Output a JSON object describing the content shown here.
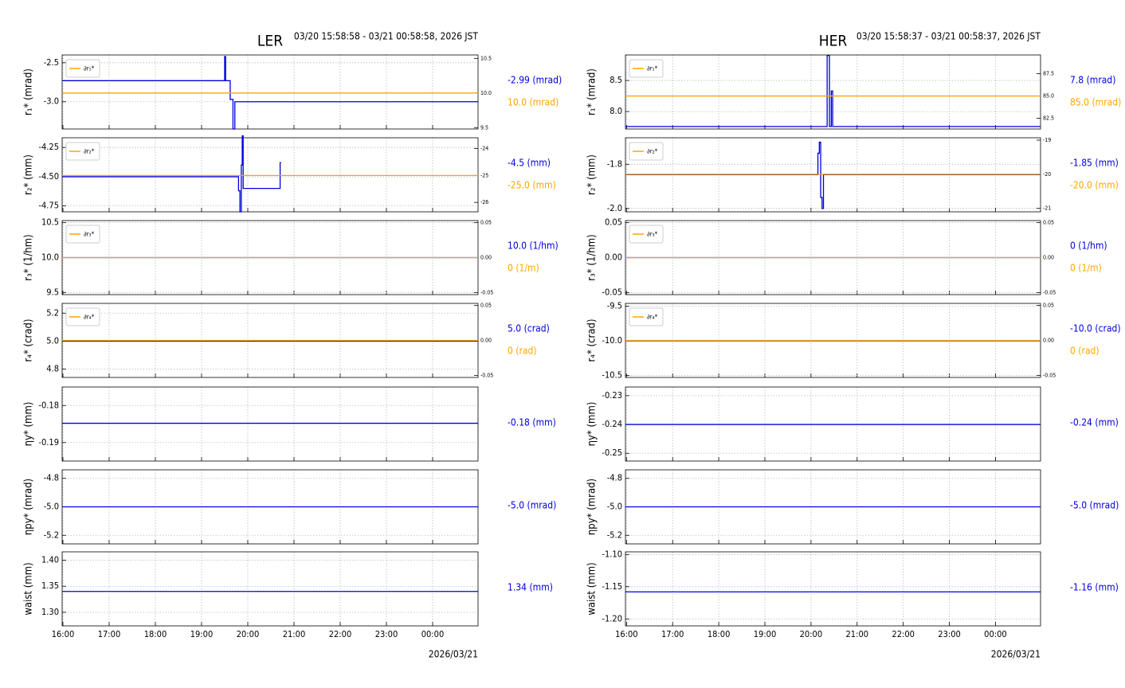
{
  "chart_data": [
    {
      "type": "line",
      "title": "LER",
      "subtitle": "03/20 15:58:58 - 03/21 00:58:58, 2026 JST",
      "xlabel": "2026/03/21",
      "xlim": [
        15.983,
        24.983
      ],
      "xticks": [
        {
          "value": 16,
          "label": "16:00"
        },
        {
          "value": 17,
          "label": "17:00"
        },
        {
          "value": 18,
          "label": "18:00"
        },
        {
          "value": 19,
          "label": "19:00"
        },
        {
          "value": 20,
          "label": "20:00"
        },
        {
          "value": 21,
          "label": "21:00"
        },
        {
          "value": 22,
          "label": "22:00"
        },
        {
          "value": 23,
          "label": "23:00"
        },
        {
          "value": 24,
          "label": "00:00"
        }
      ],
      "panels": [
        {
          "ylabel": "r₁* (mrad)",
          "ylim": [
            -3.35,
            -2.4
          ],
          "yticks": [
            -2.5,
            {
              "value": -3,
              "label": "-3.0"
            }
          ],
          "y2lim": [
            9.48,
            10.55
          ],
          "y2ticks": [
            10.5,
            {
              "value": 10,
              "label": "10.0"
            },
            9.5
          ],
          "series": [
            {
              "color": "#0000dd",
              "x": [
                15.983,
                19.5,
                19.5,
                19.52,
                19.52,
                19.62,
                19.62,
                19.68,
                19.68,
                19.72,
                19.72,
                24.983
              ],
              "values": [
                -2.73,
                -2.73,
                -2.42,
                -2.42,
                -2.73,
                -2.73,
                -2.97,
                -2.97,
                -3.35,
                -3.35,
                -3.0,
                -3.0
              ]
            },
            {
              "name": "∂r₁*",
              "color": "#ffa500",
              "axis": "y2",
              "x": [
                15.983,
                24.983
              ],
              "values": [
                10.0,
                10.0
              ]
            }
          ],
          "readouts": [
            {
              "text": "-2.99 (mrad)",
              "color": "#0000dd"
            },
            {
              "text": "10.0 (mrad)",
              "color": "#ffa500"
            }
          ]
        },
        {
          "ylabel": "r₂* (mm)",
          "ylim": [
            -4.8,
            -4.167
          ],
          "yticks": [
            -4.25,
            {
              "value": -4.5,
              "label": "-4.50"
            },
            -4.75
          ],
          "y2lim": [
            -26.35,
            -23.6
          ],
          "y2ticks": [
            -24,
            -25,
            -26
          ],
          "series": [
            {
              "color": "#0000dd",
              "x": [
                15.983,
                19.8,
                19.8,
                19.83,
                19.83,
                19.86,
                19.86,
                19.88,
                19.88,
                19.9,
                19.9,
                19.93,
                19.93,
                20.7,
                20.7,
                20.72
              ],
              "values": [
                -4.5,
                -4.5,
                -4.62,
                -4.62,
                -4.8,
                -4.8,
                -4.4,
                -4.4,
                -4.15,
                -4.15,
                -4.6,
                -4.6,
                -4.6,
                -4.6,
                -4.38,
                -4.38
              ]
            },
            {
              "name": "∂r₂*",
              "color": "#ffa500",
              "axis": "y2",
              "x": [
                15.983,
                24.983
              ],
              "values": [
                -25,
                -25
              ]
            }
          ],
          "readouts": [
            {
              "text": "-4.5 (mm)",
              "color": "#0000dd"
            },
            {
              "text": "-25.0 (mm)",
              "color": "#ffa500"
            }
          ]
        },
        {
          "ylabel": "r₃* (1/hm)",
          "ylim": [
            9.47,
            10.53
          ],
          "yticks": [
            10.5,
            {
              "value": 10,
              "label": "10.0"
            },
            9.5
          ],
          "y2lim": [
            -0.053,
            0.053
          ],
          "y2ticks": [
            0.05,
            {
              "value": 0,
              "label": "0.00"
            },
            -0.05
          ],
          "series": [
            {
              "color": "#0000dd",
              "x": [
                15.983,
                24.983
              ],
              "values": [
                10,
                10
              ]
            },
            {
              "name": "∂r₃*",
              "color": "#ffa500",
              "axis": "y2",
              "x": [
                15.983,
                24.983
              ],
              "values": [
                0,
                0
              ]
            }
          ],
          "readouts": [
            {
              "text": "10.0 (1/hm)",
              "color": "#0000dd"
            },
            {
              "text": "0 (1/m)",
              "color": "#ffa500"
            }
          ]
        },
        {
          "ylabel": "r₄* (crad)",
          "ylim": [
            4.74,
            5.27
          ],
          "yticks": [
            5.2,
            {
              "value": 5,
              "label": "5.0"
            },
            4.8
          ],
          "y2lim": [
            -0.053,
            0.053
          ],
          "y2ticks": [
            0.05,
            {
              "value": 0,
              "label": "0.00"
            },
            -0.05
          ],
          "series": [
            {
              "color": "#0000dd",
              "x": [
                15.983,
                24.983
              ],
              "values": [
                5,
                5
              ]
            },
            {
              "name": "∂r₄*",
              "color": "#ffa500",
              "axis": "y2",
              "x": [
                15.983,
                24.983
              ],
              "values": [
                0,
                0
              ]
            }
          ],
          "readouts": [
            {
              "text": "5.0 (crad)",
              "color": "#0000dd"
            },
            {
              "text": "0 (rad)",
              "color": "#ffa500"
            }
          ]
        },
        {
          "ylabel": "ηy* (mm)",
          "ylim": [
            -0.195,
            -0.175
          ],
          "yticks": [
            -0.18,
            -0.19
          ],
          "series": [
            {
              "color": "#0000dd",
              "x": [
                15.983,
                24.983
              ],
              "values": [
                -0.1848,
                -0.1848
              ]
            }
          ],
          "readouts": [
            {
              "text": "-0.18 (mm)",
              "color": "#0000dd"
            }
          ]
        },
        {
          "ylabel": "ηpy* (mrad)",
          "ylim": [
            -5.26,
            -4.74
          ],
          "yticks": [
            -4.8,
            {
              "value": -5,
              "label": "-5.0"
            },
            -5.2
          ],
          "series": [
            {
              "color": "#0000dd",
              "x": [
                15.983,
                24.983
              ],
              "values": [
                -5,
                -5
              ]
            }
          ],
          "readouts": [
            {
              "text": "-5.0 (mrad)",
              "color": "#0000dd"
            }
          ]
        },
        {
          "ylabel": "waist (mm)",
          "ylim": [
            1.274,
            1.416
          ],
          "yticks": [
            {
              "value": 1.4,
              "label": "1.40"
            },
            1.35,
            {
              "value": 1.3,
              "label": "1.30"
            }
          ],
          "series": [
            {
              "color": "#0000dd",
              "x": [
                15.983,
                24.983
              ],
              "values": [
                1.34,
                1.34
              ]
            }
          ],
          "readouts": [
            {
              "text": "1.34 (mm)",
              "color": "#0000dd"
            }
          ]
        }
      ]
    },
    {
      "type": "line",
      "title": "HER",
      "subtitle": "03/20 15:58:37 - 03/21 00:58:37, 2026 JST",
      "xlabel": "2026/03/21",
      "xlim": [
        15.977,
        24.977
      ],
      "xticks": [
        {
          "value": 16,
          "label": "16:00"
        },
        {
          "value": 17,
          "label": "17:00"
        },
        {
          "value": 18,
          "label": "18:00"
        },
        {
          "value": 19,
          "label": "19:00"
        },
        {
          "value": 20,
          "label": "20:00"
        },
        {
          "value": 21,
          "label": "21:00"
        },
        {
          "value": 22,
          "label": "22:00"
        },
        {
          "value": 23,
          "label": "23:00"
        },
        {
          "value": 24,
          "label": "00:00"
        }
      ],
      "panels": [
        {
          "ylabel": "r₁* (mrad)",
          "ylim": [
            7.72,
            8.91
          ],
          "yticks": [
            8.5,
            {
              "value": 8,
              "label": "8.0"
            }
          ],
          "y2lim": [
            81.3,
            89.6
          ],
          "y2ticks": [
            87.5,
            {
              "value": 85,
              "label": "85.0"
            },
            82.5
          ],
          "series": [
            {
              "color": "#0000dd",
              "x": [
                15.977,
                20.35,
                20.35,
                20.4,
                20.4,
                20.44,
                20.44,
                20.47,
                20.47,
                24.977
              ],
              "values": [
                7.76,
                7.76,
                8.9,
                8.9,
                7.76,
                7.76,
                8.33,
                8.33,
                7.76,
                7.76
              ]
            },
            {
              "name": "∂r₁*",
              "color": "#ffa500",
              "axis": "y2",
              "x": [
                15.977,
                24.977
              ],
              "values": [
                85,
                85
              ]
            }
          ],
          "readouts": [
            {
              "text": "7.8 (mrad)",
              "color": "#0000dd"
            },
            {
              "text": "85.0 (mrad)",
              "color": "#ffa500"
            }
          ]
        },
        {
          "ylabel": "r₂* (mm)",
          "ylim": [
            -2.015,
            -1.68
          ],
          "yticks": [
            -1.8,
            {
              "value": -2,
              "label": "-2.0"
            }
          ],
          "y2lim": [
            -21.1,
            -18.93
          ],
          "y2ticks": [
            -19,
            -20,
            -21
          ],
          "series": [
            {
              "color": "#0000dd",
              "x": [
                15.977,
                20.15,
                20.15,
                20.18,
                20.18,
                20.21,
                20.21,
                20.24,
                20.24,
                20.27,
                20.27,
                24.977
              ],
              "values": [
                -1.847,
                -1.847,
                -1.75,
                -1.75,
                -1.7,
                -1.7,
                -1.95,
                -1.95,
                -2.0,
                -2.0,
                -1.847,
                -1.847
              ]
            },
            {
              "name": "∂r₂*",
              "color": "#ffa500",
              "axis": "y2",
              "x": [
                15.977,
                24.977
              ],
              "values": [
                -20,
                -20
              ]
            }
          ],
          "readouts": [
            {
              "text": "-1.85 (mm)",
              "color": "#0000dd"
            },
            {
              "text": "-20.0 (mm)",
              "color": "#ffa500"
            }
          ]
        },
        {
          "ylabel": "r₃* (1/hm)",
          "ylim": [
            -0.053,
            0.053
          ],
          "yticks": [
            {
              "value": 0.05,
              "label": "0.05"
            },
            {
              "value": 0,
              "label": "0.00"
            },
            -0.05
          ],
          "y2lim": [
            -0.053,
            0.053
          ],
          "y2ticks": [
            0.05,
            {
              "value": 0,
              "label": "0.00"
            },
            -0.05
          ],
          "series": [
            {
              "color": "#0000dd",
              "x": [
                15.977,
                24.977
              ],
              "values": [
                0,
                0
              ]
            },
            {
              "name": "∂r₃*",
              "color": "#ffa500",
              "axis": "y2",
              "x": [
                15.977,
                24.977
              ],
              "values": [
                0,
                0
              ]
            }
          ],
          "readouts": [
            {
              "text": "0 (1/hm)",
              "color": "#0000dd"
            },
            {
              "text": "0 (1/m)",
              "color": "#ffa500"
            }
          ]
        },
        {
          "ylabel": "r₄* (crad)",
          "ylim": [
            -10.53,
            -9.46
          ],
          "yticks": [
            -9.5,
            {
              "value": -10,
              "label": "-10.0"
            },
            -10.5
          ],
          "y2lim": [
            -0.053,
            0.053
          ],
          "y2ticks": [
            0.05,
            {
              "value": 0,
              "label": "0.00"
            },
            -0.05
          ],
          "series": [
            {
              "color": "#0000dd",
              "x": [
                15.977,
                24.977
              ],
              "values": [
                -10,
                -10
              ]
            },
            {
              "name": "∂r₄*",
              "color": "#ffa500",
              "axis": "y2",
              "x": [
                15.977,
                24.977
              ],
              "values": [
                0,
                0
              ]
            }
          ],
          "readouts": [
            {
              "text": "-10.0 (crad)",
              "color": "#0000dd"
            },
            {
              "text": "0 (rad)",
              "color": "#ffa500"
            }
          ]
        },
        {
          "ylabel": "ηy* (mm)",
          "ylim": [
            -0.2527,
            -0.227
          ],
          "yticks": [
            -0.23,
            -0.24,
            -0.25
          ],
          "series": [
            {
              "color": "#0000dd",
              "x": [
                15.977,
                24.977
              ],
              "values": [
                -0.24,
                -0.24
              ]
            }
          ],
          "readouts": [
            {
              "text": "-0.24 (mm)",
              "color": "#0000dd"
            }
          ]
        },
        {
          "ylabel": "ηpy* (mrad)",
          "ylim": [
            -5.26,
            -4.74
          ],
          "yticks": [
            -4.8,
            {
              "value": -5,
              "label": "-5.0"
            },
            -5.2
          ],
          "series": [
            {
              "color": "#0000dd",
              "x": [
                15.977,
                24.977
              ],
              "values": [
                -5,
                -5
              ]
            }
          ],
          "readouts": [
            {
              "text": "-5.0 (mrad)",
              "color": "#0000dd"
            }
          ]
        },
        {
          "ylabel": "waist (mm)",
          "ylim": [
            -1.2108,
            -1.0959
          ],
          "yticks": [
            {
              "value": -1.1,
              "label": "-1.10"
            },
            -1.15,
            {
              "value": -1.2,
              "label": "-1.20"
            }
          ],
          "series": [
            {
              "color": "#0000dd",
              "x": [
                15.977,
                24.977
              ],
              "values": [
                -1.158,
                -1.158
              ]
            }
          ],
          "readouts": [
            {
              "text": "-1.16 (mm)",
              "color": "#0000dd"
            }
          ]
        }
      ]
    }
  ]
}
